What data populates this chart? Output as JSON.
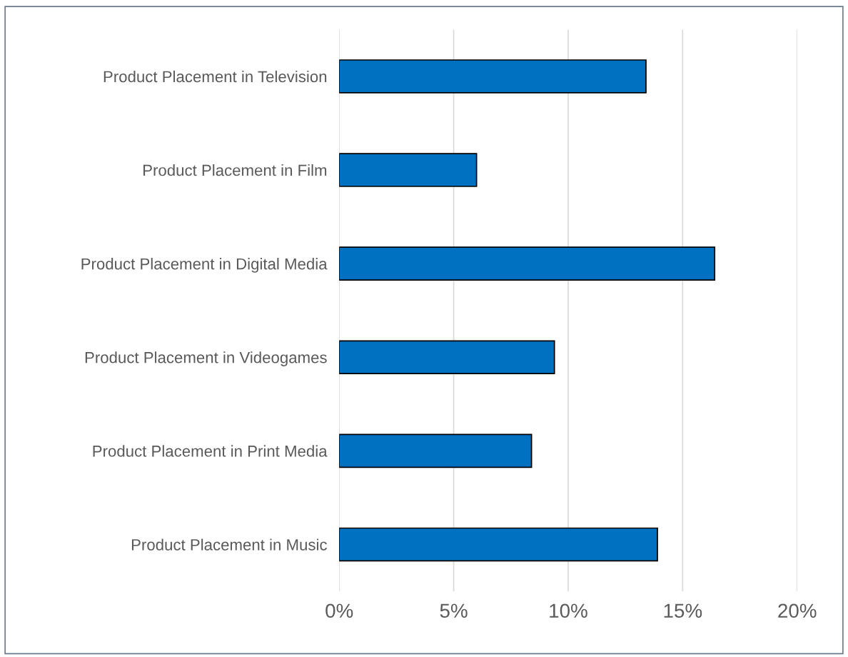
{
  "chart_data": {
    "type": "bar",
    "orientation": "horizontal",
    "categories": [
      "Product Placement in Television",
      "Product Placement in Film",
      "Product Placement in Digital Media",
      "Product Placement in Videogames",
      "Product Placement in Print Media",
      "Product Placement in Music"
    ],
    "values": [
      13.4,
      6.0,
      16.4,
      9.4,
      8.4,
      13.9
    ],
    "color": "#0070c0",
    "xlim": [
      0,
      20
    ],
    "xticks": [
      {
        "value": 0,
        "label": "0%"
      },
      {
        "value": 5,
        "label": "5%"
      },
      {
        "value": 10,
        "label": "10%"
      },
      {
        "value": 15,
        "label": "15%"
      },
      {
        "value": 20,
        "label": "20%"
      }
    ],
    "grid": "x"
  }
}
